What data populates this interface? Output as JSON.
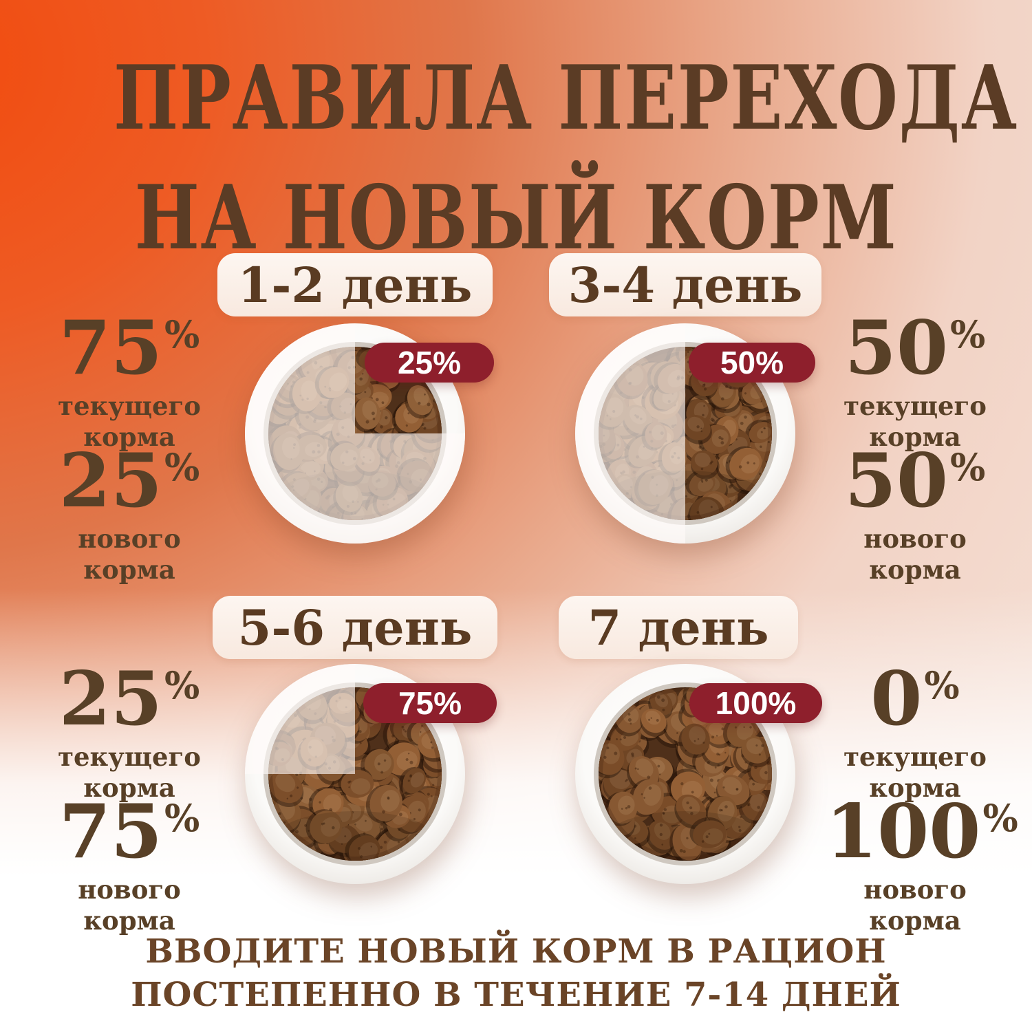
{
  "title": {
    "line1": "ПРАВИЛА ПЕРЕХОДА",
    "line2": "НА НОВЫЙ КОРМ"
  },
  "percent_sign": "%",
  "panels": [
    {
      "day": "1-2 день",
      "badge": "25%",
      "new_percent": 25,
      "current": {
        "value": "75",
        "label": "текущего корма"
      },
      "new": {
        "value": "25",
        "label": "нового корма"
      }
    },
    {
      "day": "3-4 день",
      "badge": "50%",
      "new_percent": 50,
      "current": {
        "value": "50",
        "label": "текущего корма"
      },
      "new": {
        "value": "50",
        "label": "нового корма"
      }
    },
    {
      "day": "5-6 день",
      "badge": "75%",
      "new_percent": 75,
      "current": {
        "value": "25",
        "label": "текущего корма"
      },
      "new": {
        "value": "75",
        "label": "нового корма"
      }
    },
    {
      "day": "7 день",
      "badge": "100%",
      "new_percent": 100,
      "current": {
        "value": "0",
        "label": "текущего корма"
      },
      "new": {
        "value": "100",
        "label": "нового корма"
      }
    }
  ],
  "footer": {
    "line1": "ВВОДИТЕ НОВЫЙ КОРМ В РАЦИОН",
    "line2": "ПОСТЕПЕННО В ТЕЧЕНИЕ 7-14 ДНЕЙ"
  },
  "colors": {
    "badge": "#8e1f2c",
    "title_text": "#5b3c25",
    "label_text": "#584027",
    "footer_text": "#6a4427",
    "accent_orange": "#f24a0d",
    "pill_bg": "#fbeee6"
  }
}
